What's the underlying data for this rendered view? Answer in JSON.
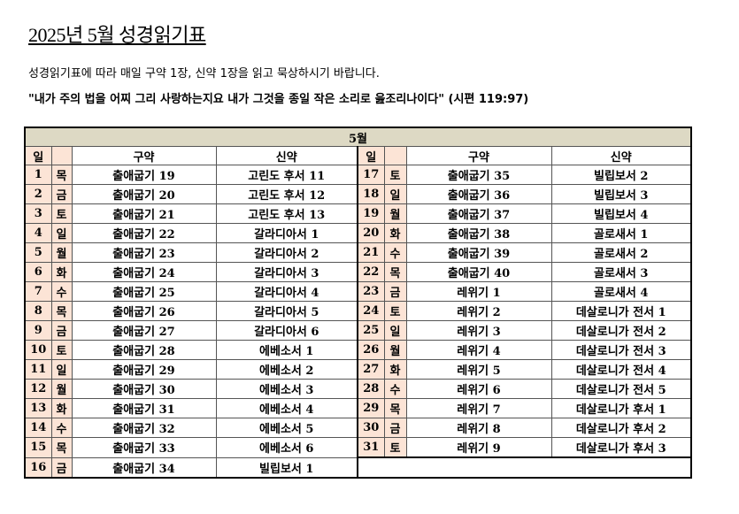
{
  "title": "2025년 5월 성경읽기표",
  "description": "성경읽기표에 따라 매일 구약 1장, 신약 1장을 읽고 묵상하시기 바랍니다.",
  "verse": "\"내가 주의 법을 어찌 그리 사랑하는지요 내가 그것을 종일 작은 소리로 읊조리나이다\" (시편 119:97)",
  "table": {
    "month": "5월",
    "headers": {
      "day": "일",
      "weekday": "",
      "ot": "구약",
      "nt": "신약"
    },
    "colors": {
      "header_bg": "#ddd9c4",
      "day_bg": "#fce4d6"
    },
    "rows": [
      {
        "day": "1",
        "weekday": "목",
        "ot": "출애굽기 19",
        "nt": "고린도 후서 11"
      },
      {
        "day": "2",
        "weekday": "금",
        "ot": "출애굽기 20",
        "nt": "고린도 후서 12"
      },
      {
        "day": "3",
        "weekday": "토",
        "ot": "출애굽기 21",
        "nt": "고린도 후서 13"
      },
      {
        "day": "4",
        "weekday": "일",
        "ot": "출애굽기 22",
        "nt": "갈라디아서 1"
      },
      {
        "day": "5",
        "weekday": "월",
        "ot": "출애굽기 23",
        "nt": "갈라디아서 2"
      },
      {
        "day": "6",
        "weekday": "화",
        "ot": "출애굽기 24",
        "nt": "갈라디아서 3"
      },
      {
        "day": "7",
        "weekday": "수",
        "ot": "출애굽기 25",
        "nt": "갈라디아서 4"
      },
      {
        "day": "8",
        "weekday": "목",
        "ot": "출애굽기 26",
        "nt": "갈라디아서 5"
      },
      {
        "day": "9",
        "weekday": "금",
        "ot": "출애굽기 27",
        "nt": "갈라디아서 6"
      },
      {
        "day": "10",
        "weekday": "토",
        "ot": "출애굽기 28",
        "nt": "에베소서 1"
      },
      {
        "day": "11",
        "weekday": "일",
        "ot": "출애굽기 29",
        "nt": "에베소서 2"
      },
      {
        "day": "12",
        "weekday": "월",
        "ot": "출애굽기 30",
        "nt": "에베소서 3"
      },
      {
        "day": "13",
        "weekday": "화",
        "ot": "출애굽기 31",
        "nt": "에베소서 4"
      },
      {
        "day": "14",
        "weekday": "수",
        "ot": "출애굽기 32",
        "nt": "에베소서 5"
      },
      {
        "day": "15",
        "weekday": "목",
        "ot": "출애굽기 33",
        "nt": "에베소서 6"
      },
      {
        "day": "16",
        "weekday": "금",
        "ot": "출애굽기 34",
        "nt": "빌립보서 1"
      },
      {
        "day": "17",
        "weekday": "토",
        "ot": "출애굽기 35",
        "nt": "빌립보서 2"
      },
      {
        "day": "18",
        "weekday": "일",
        "ot": "출애굽기 36",
        "nt": "빌립보서 3"
      },
      {
        "day": "19",
        "weekday": "월",
        "ot": "출애굽기 37",
        "nt": "빌립보서 4"
      },
      {
        "day": "20",
        "weekday": "화",
        "ot": "출애굽기 38",
        "nt": "골로새서 1"
      },
      {
        "day": "21",
        "weekday": "수",
        "ot": "출애굽기 39",
        "nt": "골로새서 2"
      },
      {
        "day": "22",
        "weekday": "목",
        "ot": "출애굽기 40",
        "nt": "골로새서 3"
      },
      {
        "day": "23",
        "weekday": "금",
        "ot": "레위기 1",
        "nt": "골로새서 4"
      },
      {
        "day": "24",
        "weekday": "토",
        "ot": "레위기 2",
        "nt": "데살로니가 전서 1"
      },
      {
        "day": "25",
        "weekday": "일",
        "ot": "레위기 3",
        "nt": "데살로니가 전서 2"
      },
      {
        "day": "26",
        "weekday": "월",
        "ot": "레위기 4",
        "nt": "데살로니가 전서 3"
      },
      {
        "day": "27",
        "weekday": "화",
        "ot": "레위기 5",
        "nt": "데살로니가 전서 4"
      },
      {
        "day": "28",
        "weekday": "수",
        "ot": "레위기 6",
        "nt": "데살로니가 전서 5"
      },
      {
        "day": "29",
        "weekday": "목",
        "ot": "레위기 7",
        "nt": "데살로니가 후서 1"
      },
      {
        "day": "30",
        "weekday": "금",
        "ot": "레위기 8",
        "nt": "데살로니가 후서 2"
      },
      {
        "day": "31",
        "weekday": "토",
        "ot": "레위기 9",
        "nt": "데살로니가 후서 3"
      }
    ]
  }
}
